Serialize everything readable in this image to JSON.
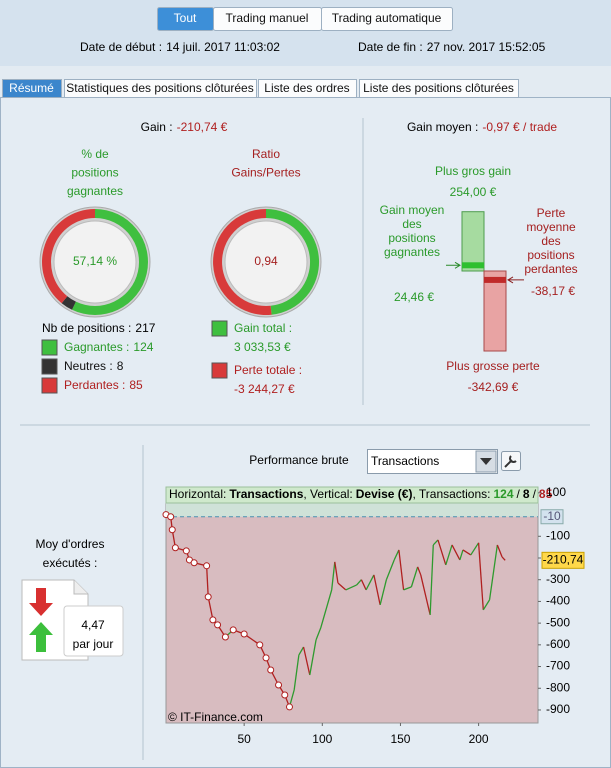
{
  "top_buttons": {
    "items": [
      "Tout",
      "Trading manuel",
      "Trading automatique"
    ],
    "active": 0
  },
  "dates": {
    "start_label": "Date de début :",
    "start": "14 juil. 2017 11:03:02",
    "end_label": "Date de fin :",
    "end": "27 nov. 2017 15:52:05"
  },
  "tabs": {
    "items": [
      "Résumé",
      "Statistiques des positions clôturées",
      "Liste des ordres",
      "Liste des positions clôturées"
    ],
    "active": 0
  },
  "summary": {
    "gain": {
      "label": "Gain :",
      "value": "-210,74 €"
    },
    "win_rate": {
      "title": [
        "% de",
        "positions",
        "gagnantes"
      ],
      "value": "57,14 %"
    },
    "ratio": {
      "title": [
        "Ratio",
        "Gains/Pertes"
      ],
      "value": "0,94"
    },
    "positions": {
      "label": "Nb de positions :",
      "value": 217
    },
    "wins": {
      "label": "Gagnantes :",
      "value": 124,
      "color": "#3fbf3f"
    },
    "neutrals": {
      "label": "Neutres :",
      "value": 8,
      "color": "#333333"
    },
    "losses": {
      "label": "Perdantes :",
      "value": 85,
      "color": "#d83a3a"
    },
    "gain_total": {
      "label": "Gain total :",
      "value": 3033.53,
      "value_label": "3 033,53 €"
    },
    "loss_total": {
      "label": "Perte totale :",
      "value": -3244.27,
      "value_label": "-3 244,27 €"
    }
  },
  "average": {
    "label": "Gain moyen :",
    "value": "-0,97 € / trade",
    "max_gain": {
      "label": "Plus gros gain",
      "value": 254.0,
      "value_label": "254,00 €"
    },
    "avg_gain": {
      "label": [
        "Gain moyen",
        "des",
        "positions",
        "gagnantes"
      ],
      "value": 24.46,
      "value_label": "24,46 €"
    },
    "avg_loss": {
      "label": [
        "Perte",
        "moyenne",
        "des",
        "positions",
        "perdantes"
      ],
      "value": -38.17,
      "value_label": "-38,17 €"
    },
    "max_loss": {
      "label": "Plus grosse perte",
      "value": -342.69,
      "value_label": "-342,69 €"
    }
  },
  "orders": {
    "label": [
      "Moy d'ordres",
      "exécutés :"
    ],
    "value": "4,47",
    "unit": "par jour"
  },
  "performance": {
    "title": "Performance brute",
    "dropdown": "Transactions",
    "watermark": "© IT-Finance.com"
  },
  "chart_data": {
    "type": "line",
    "header_labels": {
      "h": "Horizontal:",
      "v": ", Vertical:",
      "t": ", Transactions:",
      "sep": "/"
    },
    "x_label": "Transactions",
    "y_label": "Devise (€)",
    "x": [
      0,
      3,
      4,
      6,
      13,
      15,
      18,
      26,
      27,
      30,
      33,
      38,
      43,
      50,
      60,
      64,
      67,
      72,
      76,
      79,
      82,
      85,
      88,
      92,
      96,
      99,
      106,
      108,
      110,
      115,
      122,
      125,
      128,
      133,
      137,
      141,
      146,
      149,
      152,
      157,
      161,
      163,
      169,
      171,
      174,
      179,
      183,
      188,
      190,
      195,
      200,
      203,
      207,
      212,
      215,
      217
    ],
    "values": [
      0,
      -10,
      -70,
      -153,
      -167,
      -209,
      -222,
      -236,
      -379,
      -485,
      -508,
      -564,
      -531,
      -550,
      -600,
      -660,
      -716,
      -785,
      -831,
      -886,
      -808,
      -647,
      -610,
      -739,
      -577,
      -522,
      -347,
      -218,
      -315,
      -347,
      -324,
      -300,
      -347,
      -278,
      -416,
      -300,
      -209,
      -163,
      -347,
      -333,
      -241,
      -278,
      -462,
      -140,
      -117,
      -232,
      -140,
      -209,
      -163,
      -186,
      -130,
      -439,
      -393,
      -140,
      -195,
      -210.74
    ],
    "up_color": "#2e9a2e",
    "down_color": "#b02020",
    "xlim": [
      0,
      238
    ],
    "xticks": [
      50,
      100,
      150,
      200
    ],
    "ylim": [
      -960,
      127
    ],
    "yticks": [
      100,
      -100,
      -200,
      -300,
      -400,
      -500,
      -600,
      -700,
      -800,
      -900
    ],
    "reference": {
      "value": -10,
      "label": "-10"
    },
    "current": {
      "value": -210.74,
      "label": "-210,74"
    }
  }
}
